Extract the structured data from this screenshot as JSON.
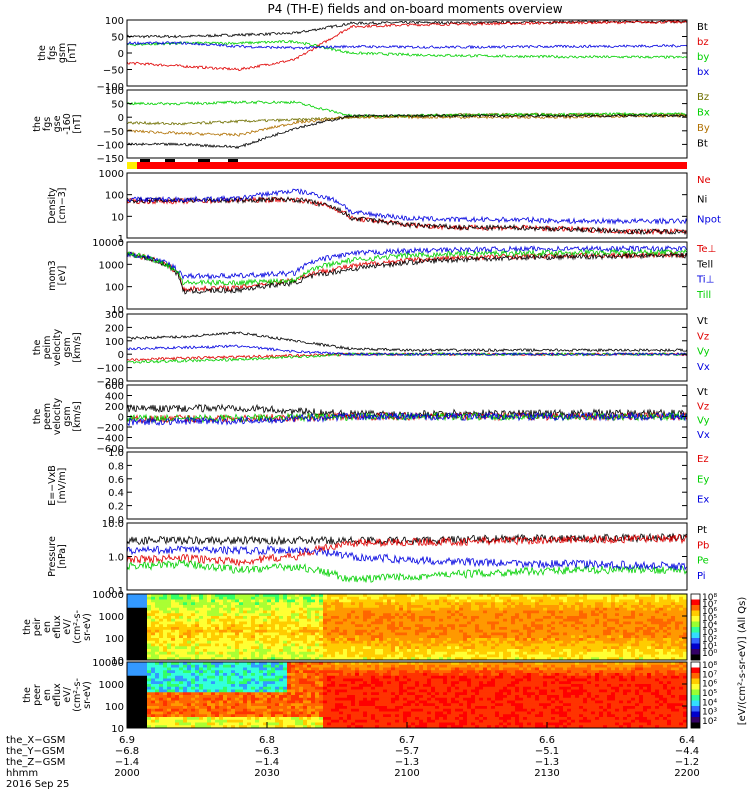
{
  "title": "P4 (TH-E) fields and on-board moments overview",
  "colors": {
    "black": "#000000",
    "red": "#e00000",
    "green": "#00d000",
    "blue": "#0000e0",
    "orange": "#b07000",
    "olive": "#707000",
    "yellow": "#ffee00",
    "flagRed": "#ff0000"
  },
  "chart_data": [
    {
      "type": "line",
      "id": "fgs_gsm",
      "ylabel": [
        "the",
        "fgs",
        "gsm",
        "[nT]"
      ],
      "ylim": [
        -100,
        100
      ],
      "yticks": [
        "100",
        "50",
        "0",
        "−50",
        "−100"
      ],
      "series": [
        {
          "name": "Bt",
          "color": "black",
          "base": [
            50,
            50,
            55,
            60,
            90,
            92,
            92,
            93,
            94,
            95,
            95
          ]
        },
        {
          "name": "bz",
          "color": "red",
          "base": [
            -30,
            -40,
            -50,
            -20,
            80,
            85,
            88,
            90,
            92,
            93,
            94
          ]
        },
        {
          "name": "by",
          "color": "green",
          "base": [
            25,
            30,
            30,
            35,
            0,
            -5,
            -8,
            -10,
            -12,
            -12,
            -13
          ]
        },
        {
          "name": "bx",
          "color": "blue",
          "base": [
            30,
            30,
            20,
            15,
            20,
            18,
            18,
            19,
            20,
            21,
            22
          ]
        }
      ]
    },
    {
      "type": "line",
      "id": "fgs_gse",
      "ylabel": [
        "the",
        "fgs",
        "gse",
        "-160",
        "[nT]"
      ],
      "ylim": [
        -150,
        100
      ],
      "yticks": [
        "100",
        "50",
        "0",
        "−50",
        "−100",
        "−150"
      ],
      "series": [
        {
          "name": "Bz",
          "color": "olive",
          "base": [
            -20,
            -25,
            -15,
            -10,
            0,
            5,
            10,
            10,
            10,
            10,
            10
          ]
        },
        {
          "name": "Bx",
          "color": "green",
          "base": [
            50,
            50,
            55,
            55,
            5,
            5,
            8,
            10,
            10,
            12,
            12
          ]
        },
        {
          "name": "By",
          "color": "orange",
          "base": [
            -50,
            -60,
            -65,
            -20,
            0,
            0,
            0,
            0,
            0,
            5,
            5
          ]
        },
        {
          "name": "Bt",
          "color": "black",
          "base": [
            -100,
            -100,
            -110,
            -40,
            5,
            5,
            5,
            5,
            5,
            5,
            5
          ]
        }
      ]
    },
    {
      "type": "line",
      "id": "density",
      "ylabel": [
        "Density",
        "[cm−3]"
      ],
      "ylog": true,
      "ylim": [
        1,
        1000
      ],
      "yticks": [
        "1000",
        "100",
        "10",
        "1"
      ],
      "series": [
        {
          "name": "Ne",
          "color": "red",
          "base": [
            50,
            50,
            55,
            60,
            8,
            4,
            3,
            3,
            2.5,
            2,
            2
          ]
        },
        {
          "name": "Ni",
          "color": "black",
          "base": [
            55,
            55,
            55,
            60,
            8,
            4,
            3,
            3,
            2.5,
            2,
            2
          ]
        },
        {
          "name": "Npot",
          "color": "blue",
          "base": [
            60,
            60,
            65,
            150,
            15,
            8,
            7,
            7,
            6,
            6,
            6
          ]
        }
      ]
    },
    {
      "type": "line",
      "id": "temperature",
      "ylabel": [
        "mom3",
        "[eV]"
      ],
      "ylog": true,
      "ylim": [
        10,
        10000
      ],
      "yticks": [
        "10000",
        "1000",
        "100",
        "10"
      ],
      "series": [
        {
          "name": "Te⊥",
          "color": "red",
          "base": [
            3000,
            80,
            90,
            200,
            800,
            1500,
            2000,
            2300,
            2500,
            2600,
            2700
          ]
        },
        {
          "name": "Tell",
          "color": "black",
          "base": [
            3000,
            60,
            70,
            150,
            600,
            1200,
            1700,
            2000,
            2200,
            2400,
            2500
          ]
        },
        {
          "name": "Ti⊥",
          "color": "blue",
          "base": [
            3000,
            300,
            300,
            400,
            3000,
            4000,
            4500,
            4800,
            5000,
            5000,
            5000
          ]
        },
        {
          "name": "Till",
          "color": "green",
          "base": [
            3000,
            150,
            150,
            200,
            1500,
            2500,
            3000,
            3200,
            3400,
            3500,
            3500
          ]
        }
      ]
    },
    {
      "type": "line",
      "id": "peim_velocity",
      "ylabel": [
        "the",
        "peim",
        "velocity",
        "gsm",
        "[km/s]"
      ],
      "ylim": [
        -200,
        300
      ],
      "yticks": [
        "300",
        "200",
        "100",
        "0",
        "−100",
        "−200"
      ],
      "series": [
        {
          "name": "Vt",
          "color": "black",
          "base": [
            120,
            130,
            160,
            100,
            40,
            30,
            30,
            30,
            30,
            30,
            30
          ]
        },
        {
          "name": "Vz",
          "color": "red",
          "base": [
            -40,
            -30,
            -20,
            -10,
            0,
            0,
            0,
            0,
            0,
            0,
            0
          ]
        },
        {
          "name": "Vy",
          "color": "green",
          "base": [
            -60,
            -50,
            -40,
            -20,
            0,
            0,
            0,
            0,
            0,
            0,
            0
          ]
        },
        {
          "name": "Vx",
          "color": "blue",
          "base": [
            40,
            50,
            60,
            20,
            0,
            0,
            0,
            0,
            0,
            0,
            0
          ]
        }
      ]
    },
    {
      "type": "line",
      "id": "peem_velocity",
      "ylabel": [
        "the",
        "peem",
        "velocity",
        "gsm",
        "[km/s]"
      ],
      "ylim": [
        -600,
        600
      ],
      "yticks": [
        "600",
        "400",
        "200",
        "0",
        "−200",
        "−400",
        "−600"
      ],
      "series": [
        {
          "name": "Vt",
          "color": "black",
          "base": [
            150,
            150,
            170,
            100,
            50,
            50,
            60,
            60,
            60,
            60,
            60
          ]
        },
        {
          "name": "Vz",
          "color": "red",
          "base": [
            -50,
            -40,
            -30,
            -20,
            0,
            0,
            0,
            0,
            0,
            0,
            0
          ]
        },
        {
          "name": "Vy",
          "color": "green",
          "base": [
            -40,
            -40,
            -30,
            -20,
            0,
            0,
            0,
            0,
            0,
            0,
            0
          ]
        },
        {
          "name": "Vx",
          "color": "blue",
          "base": [
            -100,
            -90,
            -80,
            -40,
            0,
            0,
            0,
            0,
            0,
            0,
            0
          ]
        }
      ]
    },
    {
      "type": "line",
      "id": "efield",
      "ylabel": [
        "E=−VxB",
        "[mV/m]"
      ],
      "ylim": [
        0,
        1
      ],
      "yticks": [
        "1.0",
        "0.8",
        "0.6",
        "0.4",
        "0.2",
        "0.0"
      ],
      "series": [
        {
          "name": "Ez",
          "color": "red",
          "base": []
        },
        {
          "name": "Ey",
          "color": "green",
          "base": []
        },
        {
          "name": "Ex",
          "color": "blue",
          "base": []
        }
      ]
    },
    {
      "type": "line",
      "id": "pressure",
      "ylabel": [
        "Pressure",
        "[nPa]"
      ],
      "ylog": true,
      "ylim": [
        0.1,
        10
      ],
      "yticks": [
        "10.0",
        "1.0",
        "0.1"
      ],
      "series": [
        {
          "name": "Pt",
          "color": "black",
          "base": [
            3,
            3,
            3,
            3,
            3,
            3,
            3.2,
            3.4,
            3.5,
            3.6,
            3.7
          ]
        },
        {
          "name": "Pb",
          "color": "red",
          "base": [
            0.8,
            0.9,
            0.7,
            1,
            2.5,
            2.7,
            2.8,
            3,
            3.2,
            3.3,
            3.4
          ]
        },
        {
          "name": "Pe",
          "color": "green",
          "base": [
            0.5,
            0.6,
            0.4,
            0.5,
            0.2,
            0.25,
            0.3,
            0.35,
            0.4,
            0.4,
            0.4
          ]
        },
        {
          "name": "Pi",
          "color": "blue",
          "base": [
            1.5,
            1.6,
            1.5,
            1.6,
            1,
            0.8,
            0.7,
            0.6,
            0.6,
            0.55,
            0.5
          ]
        }
      ]
    },
    {
      "type": "heatmap",
      "id": "peir_eflux",
      "ylabel": [
        "the",
        "peir",
        "en",
        "eflux",
        "eV/",
        "(cm²-s-",
        "sr-eV)"
      ],
      "ylog": true,
      "ylim": [
        10,
        10000
      ],
      "yticks": [
        "10000",
        "1000",
        "100",
        "10"
      ],
      "colorbar": {
        "label": "[eV/(cm²-s-sr-eV)] (All Qs)",
        "ticks": [
          "10⁸",
          "10⁷",
          "10⁶",
          "10⁵",
          "10⁴",
          "10³",
          "10²",
          "10¹",
          "10⁰"
        ]
      }
    },
    {
      "type": "heatmap",
      "id": "peer_eflux",
      "ylabel": [
        "the",
        "peer",
        "en",
        "eflux",
        "eV/",
        "(cm²-s-",
        "sr-eV)"
      ],
      "ylog": true,
      "ylim": [
        10,
        10000
      ],
      "yticks": [
        "10000",
        "1000",
        "100",
        "10"
      ],
      "colorbar": {
        "label": "[eV/(cm²-s-sr-eV)] (All Qs)",
        "ticks": [
          "10⁸",
          "10⁷",
          "10⁶",
          "10⁵",
          "10⁴",
          "10³",
          "10²"
        ]
      }
    }
  ],
  "xaxis": {
    "rows": [
      {
        "label": "the_X−GSM",
        "values": [
          "6.9",
          "6.8",
          "6.7",
          "6.6",
          "6.4"
        ]
      },
      {
        "label": "the_Y−GSM",
        "values": [
          "−6.8",
          "−6.3",
          "−5.7",
          "−5.1",
          "−4.4"
        ]
      },
      {
        "label": "the_Z−GSM",
        "values": [
          "−1.4",
          "−1.4",
          "−1.3",
          "−1.3",
          "−1.2"
        ]
      },
      {
        "label": "hhmm",
        "values": [
          "2000",
          "2030",
          "2100",
          "2130",
          "2200"
        ]
      }
    ],
    "date": "2016 Sep 25"
  }
}
